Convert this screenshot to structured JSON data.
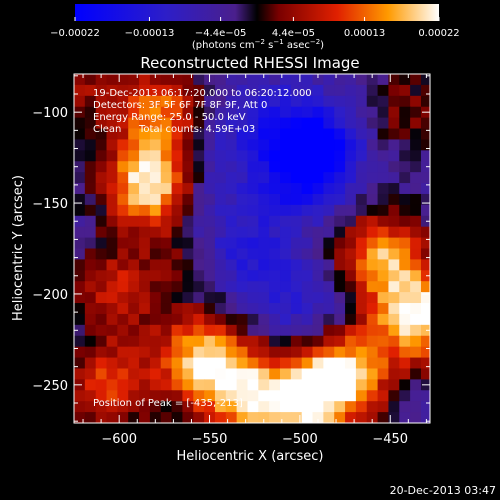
{
  "chart_data": {
    "type": "heatmap",
    "title": "Reconstructed RHESSI Image",
    "xlabel": "Heliocentric X (arcsec)",
    "ylabel": "Heliocentric Y (arcsec)",
    "xlim": [
      -625,
      -428
    ],
    "ylim": [
      -271,
      -79
    ],
    "x_ticks": [
      -600,
      -550,
      -500,
      -450
    ],
    "x_tick_labels": [
      "−600",
      "−550",
      "−500",
      "−450"
    ],
    "y_ticks": [
      -100,
      -150,
      -200,
      -250
    ],
    "y_tick_labels": [
      "−100",
      "−150",
      "−200",
      "−250"
    ],
    "colorbar": {
      "range": [
        -0.00022,
        0.00022
      ],
      "tick_values": [
        -0.00022,
        -0.00013,
        -4.4e-05,
        4.4e-05,
        0.00013,
        0.00022
      ],
      "tick_labels": [
        "−0.00022",
        "−0.00013",
        "−4.4e−05",
        "4.4e−05",
        "0.00013",
        "0.00022"
      ],
      "units_main": "(photons cm",
      "units_exp1": "−2",
      "units_mid": " s",
      "units_exp2": "−1",
      "units_end": " asec",
      "units_exp3": "−2",
      "units_close": ")"
    },
    "annotations": {
      "time_range": "19-Dec-2013 06:17:20.000 to 06:20:12.000",
      "detectors": "Detectors: 3F 5F 6F 7F 8F 9F, Att 0",
      "energy_range": "Energy Range: 25.0 - 50.0 keV",
      "clean": "Clean",
      "total_counts": "Total counts: 4.59E+03",
      "peak_position": "Position of Peak = [-435,-213]"
    },
    "grid": false,
    "sources": [
      {
        "x": -583,
        "y": -140,
        "value": 0.00022
      },
      {
        "x": -578,
        "y": -100,
        "value": 0.00013
      },
      {
        "x": -435,
        "y": -213,
        "value": 0.00022
      },
      {
        "x": -455,
        "y": -180,
        "value": 0.00016
      },
      {
        "x": -475,
        "y": -245,
        "value": 0.0002
      },
      {
        "x": -500,
        "y": -260,
        "value": 0.00018
      },
      {
        "x": -555,
        "y": -235,
        "value": 0.00017
      },
      {
        "x": -532,
        "y": -255,
        "value": 0.00015
      },
      {
        "x": -605,
        "y": -250,
        "value": 0.00011
      },
      {
        "x": -600,
        "y": -198,
        "value": 8e-05
      },
      {
        "x": -560,
        "y": -175,
        "value": 4e-05
      },
      {
        "x": -490,
        "y": -120,
        "value": -0.00022
      },
      {
        "x": -505,
        "y": -140,
        "value": -0.00014
      },
      {
        "x": -515,
        "y": -105,
        "value": -0.00012
      },
      {
        "x": -530,
        "y": -180,
        "value": -0.00013
      },
      {
        "x": -555,
        "y": -160,
        "value": -0.00012
      },
      {
        "x": -498,
        "y": -205,
        "value": -0.00012
      },
      {
        "x": -545,
        "y": -120,
        "value": -9e-05
      },
      {
        "x": -618,
        "y": -85,
        "value": 4e-05
      },
      {
        "x": -440,
        "y": -100,
        "value": 3e-05
      }
    ]
  },
  "footer": {
    "timestamp": "20-Dec-2013 03:47"
  }
}
